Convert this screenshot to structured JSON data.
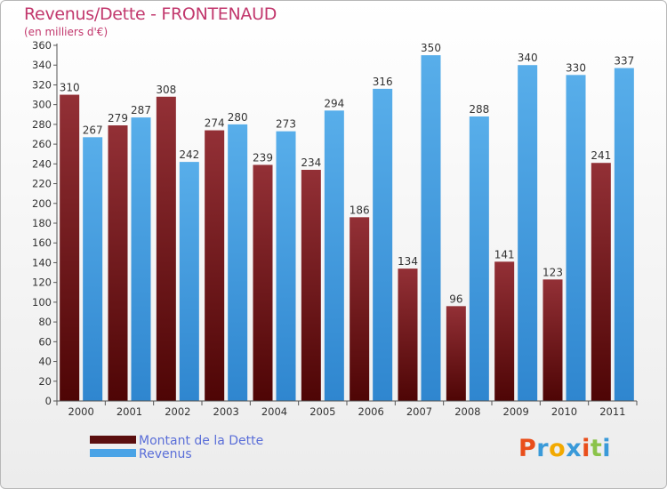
{
  "chart_data": {
    "type": "bar",
    "title": "Revenus/Dette - FRONTENAUD",
    "subtitle": "(en milliers d'€)",
    "categories": [
      "2000",
      "2001",
      "2002",
      "2003",
      "2004",
      "2005",
      "2006",
      "2007",
      "2008",
      "2009",
      "2010",
      "2011"
    ],
    "series": [
      {
        "name": "Montant de la Dette",
        "values": [
          310,
          279,
          308,
          274,
          239,
          234,
          186,
          134,
          96,
          141,
          123,
          241
        ],
        "color": "#7a1c1c"
      },
      {
        "name": "Revenus",
        "values": [
          267,
          287,
          242,
          280,
          273,
          294,
          316,
          350,
          288,
          340,
          330,
          337
        ],
        "color": "#4aa3e6"
      }
    ],
    "ylim": [
      0,
      360
    ],
    "ytick_step": 20,
    "grid": false,
    "legend": "bottom-left"
  },
  "logo": {
    "letters": [
      "P",
      "r",
      "o",
      "x",
      "i",
      "t",
      "i"
    ],
    "colors": [
      "#e94e1b",
      "#3a9ad9",
      "#f2a900",
      "#3a9ad9",
      "#e94e1b",
      "#8bc34a",
      "#3a9ad9"
    ]
  }
}
